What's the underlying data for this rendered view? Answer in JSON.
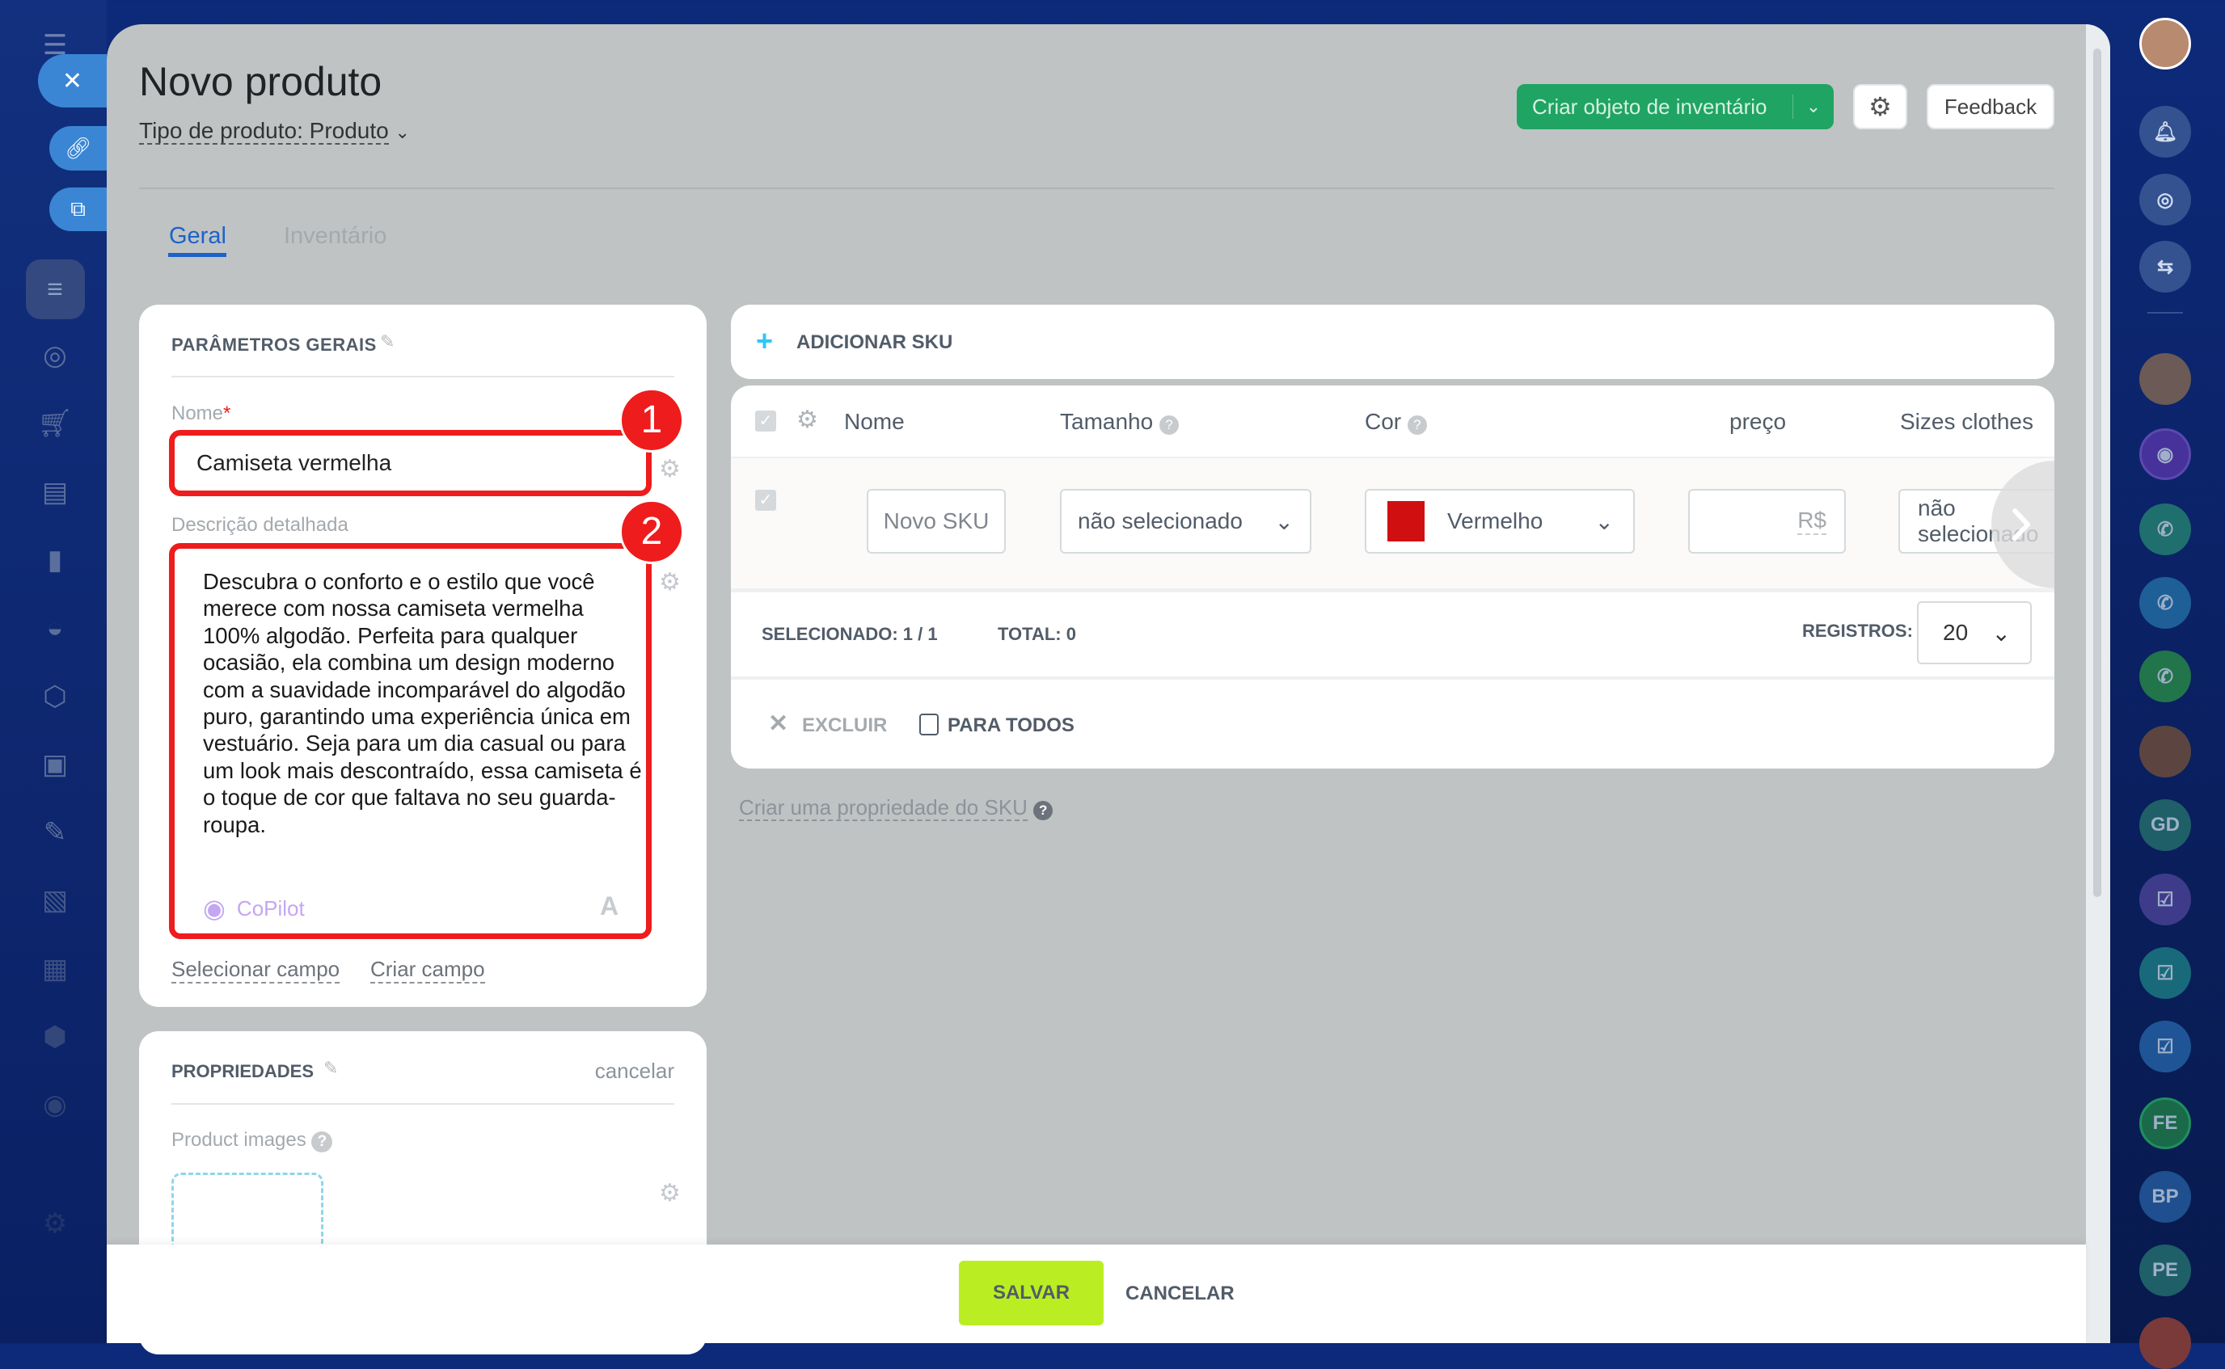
{
  "header": {
    "title": "Novo produto",
    "product_type": "Tipo de produto: Produto",
    "create_inventory_label": "Criar objeto de inventário",
    "feedback_label": "Feedback"
  },
  "tabs": [
    {
      "label": "Geral",
      "active": true
    },
    {
      "label": "Inventário",
      "active": false
    }
  ],
  "general_params": {
    "title": "PARÂMETROS GERAIS",
    "name_label": "Nome",
    "required_mark": "*",
    "name_value": "Camiseta vermelha",
    "description_label": "Descrição detalhada",
    "description_value": "Descubra o conforto e o estilo que você merece com nossa camiseta vermelha 100% algodão. Perfeita para qualquer ocasião, ela combina um design moderno com a suavidade incomparável do algodão puro, garantindo uma experiência única em vestuário. Seja para um dia casual ou para um look mais descontraído, essa camiseta é o toque de cor que faltava no seu guarda-roupa.",
    "copilot_label": "CoPilot",
    "format_label": "A",
    "select_field_link": "Selecionar campo",
    "create_field_link": "Criar campo",
    "annotations": [
      "1",
      "2"
    ]
  },
  "properties": {
    "title": "PROPRIEDADES",
    "cancel_link": "cancelar",
    "images_label": "Product images"
  },
  "sku": {
    "add_label": "ADICIONAR SKU",
    "columns": [
      "Nome",
      "Tamanho",
      "Cor",
      "preço",
      "Sizes clothes"
    ],
    "row": {
      "name_placeholder": "Novo SKU",
      "size": "não selecionado",
      "color": "Vermelho",
      "color_hex": "#d01010",
      "currency": "R$",
      "sizes_clothes": "não selecionado"
    },
    "selected": "SELECIONADO: 1 / 1",
    "total": "TOTAL: 0",
    "records_label": "REGISTROS:",
    "records_value": "20",
    "delete_label": "EXCLUIR",
    "for_all_label": "PARA TODOS",
    "create_property_link": "Criar uma propriedade do SKU"
  },
  "footer": {
    "save_label": "SALVAR",
    "cancel_label": "CANCELAR"
  },
  "right_sidebar": {
    "initials": [
      "GD",
      "FE",
      "BP",
      "PE"
    ]
  },
  "colors": {
    "accent": "#2067b0",
    "green": "#1fa463",
    "save": "#bbee22",
    "annotation": "#ee1c1c"
  }
}
